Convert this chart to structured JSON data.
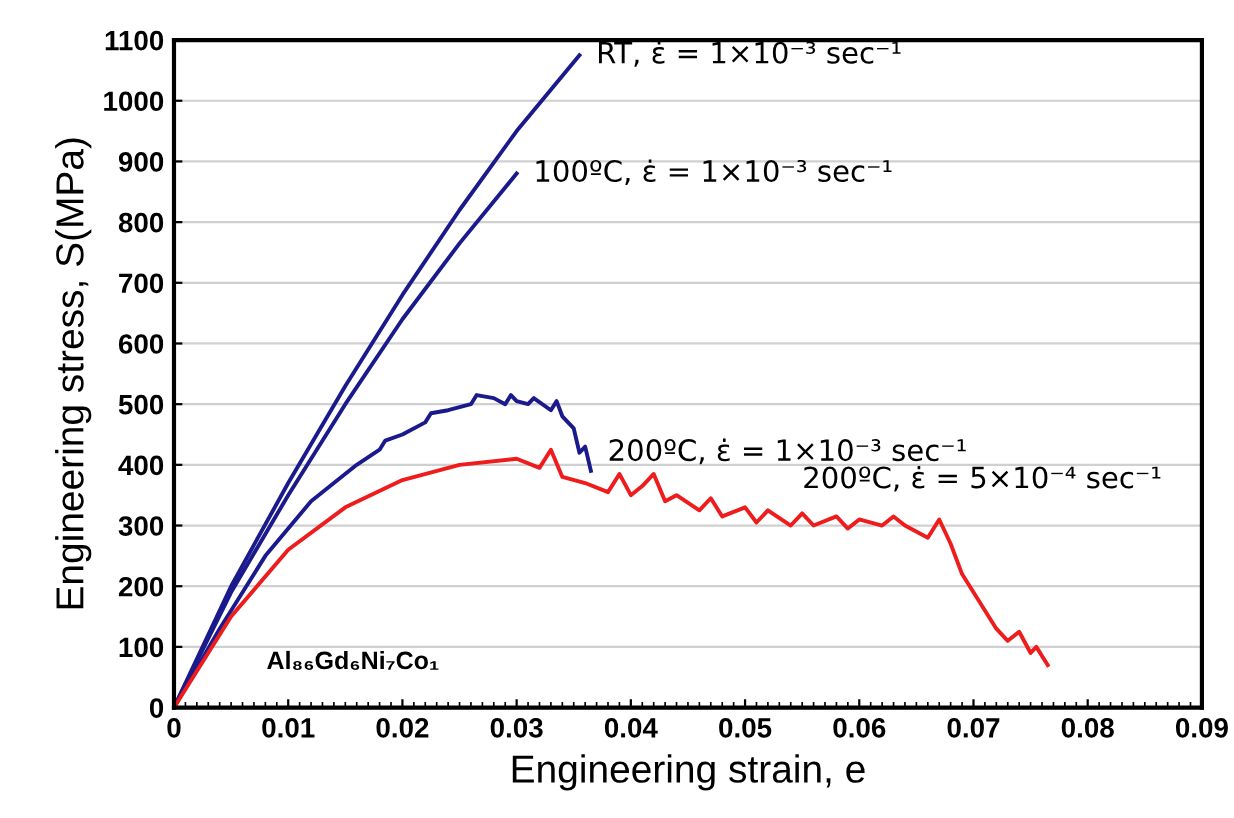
{
  "chart_data": {
    "type": "line",
    "xlabel": "Engineering strain, e",
    "ylabel": "Engineering stress, S(MPa)",
    "xlim": [
      0,
      0.09
    ],
    "xticks": [
      0,
      0.01,
      0.02,
      0.03,
      0.04,
      0.05,
      0.06,
      0.07,
      0.08,
      0.09
    ],
    "ylim": [
      0,
      1100
    ],
    "yticks": [
      0,
      100,
      200,
      300,
      400,
      500,
      600,
      700,
      800,
      900,
      1000,
      1100
    ],
    "grid": "y",
    "marker": "none",
    "line_style": "solid",
    "series": [
      {
        "color": "#1a1a8c",
        "x": [
          0,
          0.005,
          0.01,
          0.015,
          0.02,
          0.025,
          0.03,
          0.0355
        ],
        "values": [
          0,
          200,
          370,
          530,
          680,
          820,
          950,
          1075
        ]
      },
      {
        "color": "#1a1a8c",
        "x": [
          0,
          0.005,
          0.01,
          0.015,
          0.02,
          0.025,
          0.03
        ],
        "values": [
          0,
          190,
          350,
          500,
          640,
          765,
          880
        ]
      },
      {
        "color": "#1a1a8c",
        "x": [
          0,
          0.004,
          0.008,
          0.012,
          0.016,
          0.018,
          0.0185,
          0.02,
          0.022,
          0.0225,
          0.024,
          0.026,
          0.0265,
          0.028,
          0.029,
          0.0295,
          0.03,
          0.031,
          0.0315,
          0.033,
          0.0335,
          0.034,
          0.035,
          0.0355,
          0.036,
          0.0365
        ],
        "values": [
          0,
          130,
          250,
          340,
          400,
          425,
          440,
          450,
          470,
          485,
          490,
          500,
          515,
          510,
          500,
          515,
          505,
          500,
          510,
          490,
          505,
          480,
          460,
          420,
          430,
          390
        ]
      },
      {
        "color": "#ee1c1c",
        "x": [
          0,
          0.005,
          0.01,
          0.015,
          0.02,
          0.025,
          0.03,
          0.032,
          0.033,
          0.034,
          0.036,
          0.038,
          0.039,
          0.04,
          0.041,
          0.042,
          0.043,
          0.044,
          0.046,
          0.047,
          0.048,
          0.05,
          0.051,
          0.052,
          0.054,
          0.055,
          0.056,
          0.058,
          0.059,
          0.06,
          0.062,
          0.063,
          0.064,
          0.066,
          0.067,
          0.068,
          0.069,
          0.07,
          0.071,
          0.072,
          0.073,
          0.074,
          0.075,
          0.0755,
          0.0765
        ],
        "values": [
          0,
          150,
          260,
          330,
          375,
          400,
          410,
          395,
          425,
          380,
          370,
          355,
          385,
          350,
          365,
          385,
          340,
          350,
          325,
          345,
          315,
          330,
          305,
          325,
          300,
          320,
          300,
          315,
          295,
          310,
          300,
          315,
          300,
          280,
          310,
          270,
          220,
          190,
          160,
          130,
          110,
          125,
          90,
          100,
          70
        ]
      }
    ],
    "annotations": [
      {
        "text": "RT, ε̇ = 1×10⁻³ sec⁻¹",
        "x": 0.0355,
        "y": 1075
      },
      {
        "text": "100ºC, ε̇ = 1×10⁻³ sec⁻¹",
        "x": 0.03,
        "y": 880
      },
      {
        "text": "200ºC, ε̇ = 1×10⁻³ sec⁻¹",
        "x": 0.0365,
        "y": 420
      },
      {
        "text": "200ºC, ε̇ = 5×10⁻⁴ sec⁻¹",
        "x": 0.055,
        "y": 320
      },
      "Al₈₆Gd₆Ni₇Co₁"
    ]
  }
}
